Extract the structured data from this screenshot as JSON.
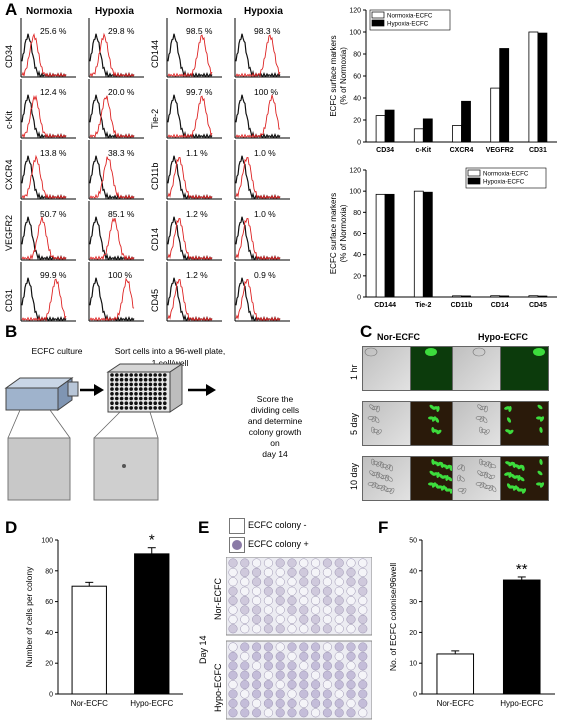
{
  "panel_labels": {
    "a": "A",
    "b": "B",
    "c": "C",
    "d": "D",
    "e": "E",
    "f": "F"
  },
  "panelA": {
    "col_headers": [
      "Normoxia",
      "Hypoxia",
      "Normoxia",
      "Hypoxia"
    ],
    "left_rows": [
      {
        "label": "CD34",
        "normoxia": "25.6 %",
        "hypoxia": "29.8 %"
      },
      {
        "label": "c-Kit",
        "normoxia": "12.4 %",
        "hypoxia": "20.0 %"
      },
      {
        "label": "CXCR4",
        "normoxia": "13.8 %",
        "hypoxia": "38.3 %"
      },
      {
        "label": "VEGFR2",
        "normoxia": "50.7 %",
        "hypoxia": "85.1 %"
      },
      {
        "label": "CD31",
        "normoxia": "99.9 %",
        "hypoxia": "100 %"
      }
    ],
    "right_rows": [
      {
        "label": "CD144",
        "normoxia": "98.5 %",
        "hypoxia": "98.3 %"
      },
      {
        "label": "Tie-2",
        "normoxia": "99.7 %",
        "hypoxia": "100 %"
      },
      {
        "label": "CD11b",
        "normoxia": "1.1 %",
        "hypoxia": "1.0 %"
      },
      {
        "label": "CD14",
        "normoxia": "1.2 %",
        "hypoxia": "1.0 %"
      },
      {
        "label": "CD45",
        "normoxia": "1.2 %",
        "hypoxia": "0.9 %"
      }
    ]
  },
  "panelB": {
    "step1": "ECFC culture",
    "step2": "Sort cells into a 96-well plate,",
    "step2b": "1 cell/well",
    "step3": [
      "Score the",
      "dividing cells",
      "and determine",
      "colony growth",
      "on",
      "day 14"
    ]
  },
  "panelC": {
    "col1": "Nor-ECFC",
    "col2": "Hypo-ECFC",
    "rows": [
      "1 hr",
      "5 day",
      "10 day"
    ]
  },
  "panelE": {
    "legend_minus": "ECFC colony -",
    "legend_plus": "ECFC colony +",
    "day": "Day 14",
    "row1": "Nor-ECFC",
    "row2": "Hypo-ECFC"
  },
  "chart_data": [
    {
      "type": "bar",
      "categories": [
        "CD34",
        "c-Kit",
        "CXCR4",
        "VEGFR2",
        "CD31"
      ],
      "series": [
        {
          "name": "Normoxia-ECFC",
          "values": [
            24,
            12,
            15,
            49,
            100
          ],
          "color": "#ffffff"
        },
        {
          "name": "Hypoxia-ECFC",
          "values": [
            29,
            21,
            37,
            85,
            99
          ],
          "color": "#000000"
        }
      ],
      "ylabel": "ECFC surface markers\n(% of Normoxia)",
      "ylim": [
        0,
        120
      ],
      "yticks": [
        0,
        20,
        40,
        60,
        80,
        100,
        120
      ],
      "legend": "top-left"
    },
    {
      "type": "bar",
      "categories": [
        "CD144",
        "Tie-2",
        "CD11b",
        "CD14",
        "CD45"
      ],
      "series": [
        {
          "name": "Normoxia-ECFC",
          "values": [
            97,
            100,
            1.1,
            1.2,
            1.2
          ],
          "color": "#ffffff"
        },
        {
          "name": "Hypoxia-ECFC",
          "values": [
            97,
            99,
            1.0,
            1.0,
            0.9
          ],
          "color": "#000000"
        }
      ],
      "ylabel": "ECFC surface markers\n(% of Normoxia)",
      "ylim": [
        0,
        120
      ],
      "yticks": [
        0,
        20,
        40,
        60,
        80,
        100,
        120
      ],
      "legend": "top-right"
    },
    {
      "type": "bar",
      "categories": [
        "Nor-ECFC",
        "Hypo-ECFC"
      ],
      "values": [
        70,
        91
      ],
      "errors": [
        2.5,
        4
      ],
      "colors": [
        "#ffffff",
        "#000000"
      ],
      "significance": [
        "",
        "*"
      ],
      "ylabel": "Number of cells per colony",
      "ylim": [
        0,
        100
      ],
      "yticks": [
        0,
        20,
        40,
        60,
        80,
        100
      ]
    },
    {
      "type": "bar",
      "categories": [
        "Nor-ECFC",
        "Hypo-ECFC"
      ],
      "values": [
        13,
        37
      ],
      "errors": [
        1,
        1
      ],
      "colors": [
        "#ffffff",
        "#000000"
      ],
      "significance": [
        "",
        "**"
      ],
      "ylabel": "No. of ECFC colonise/96well",
      "ylim": [
        0,
        50
      ],
      "yticks": [
        0,
        10,
        20,
        30,
        40,
        50
      ]
    }
  ]
}
